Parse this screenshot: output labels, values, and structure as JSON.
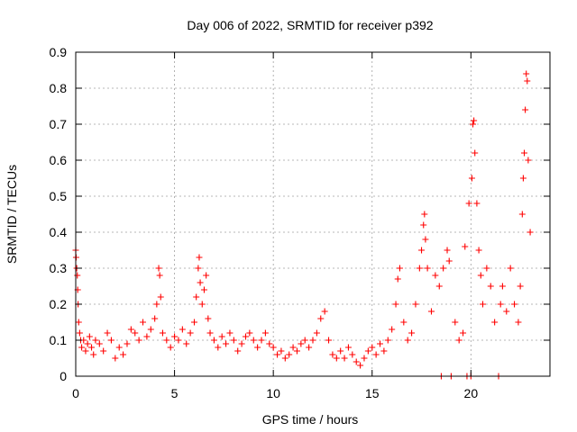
{
  "chart_data": {
    "type": "scatter",
    "title": "Day 006 of 2022, SRMTID for receiver p392",
    "xlabel": "GPS time / hours",
    "ylabel": "SRMTID / TECUs",
    "xlim": [
      0,
      24
    ],
    "ylim": [
      0,
      0.9
    ],
    "xticks": [
      0,
      5,
      10,
      15,
      20
    ],
    "xtick_labels": [
      "0",
      "5",
      "10",
      "15",
      "20"
    ],
    "yticks": [
      0,
      0.1,
      0.2,
      0.3,
      0.4,
      0.5,
      0.6,
      0.7,
      0.8,
      0.9
    ],
    "ytick_labels": [
      "0",
      "0.1",
      "0.2",
      "0.3",
      "0.4",
      "0.5",
      "0.6",
      "0.7",
      "0.8",
      "0.9"
    ],
    "grid": true,
    "marker": "+",
    "color": "#ff0000",
    "series": [
      {
        "name": "SRMTID",
        "points": [
          [
            0.0,
            0.35
          ],
          [
            0.02,
            0.33
          ],
          [
            0.05,
            0.3
          ],
          [
            0.08,
            0.28
          ],
          [
            0.1,
            0.24
          ],
          [
            0.12,
            0.2
          ],
          [
            0.15,
            0.15
          ],
          [
            0.2,
            0.12
          ],
          [
            0.25,
            0.1
          ],
          [
            0.3,
            0.08
          ],
          [
            0.4,
            0.1
          ],
          [
            0.5,
            0.07
          ],
          [
            0.6,
            0.09
          ],
          [
            0.7,
            0.11
          ],
          [
            0.8,
            0.08
          ],
          [
            0.9,
            0.06
          ],
          [
            1.0,
            0.1
          ],
          [
            1.2,
            0.09
          ],
          [
            1.4,
            0.07
          ],
          [
            1.6,
            0.12
          ],
          [
            1.8,
            0.1
          ],
          [
            2.0,
            0.05
          ],
          [
            2.2,
            0.08
          ],
          [
            2.4,
            0.06
          ],
          [
            2.6,
            0.09
          ],
          [
            2.8,
            0.13
          ],
          [
            3.0,
            0.12
          ],
          [
            3.2,
            0.1
          ],
          [
            3.4,
            0.15
          ],
          [
            3.6,
            0.11
          ],
          [
            3.8,
            0.13
          ],
          [
            4.0,
            0.16
          ],
          [
            4.1,
            0.2
          ],
          [
            4.2,
            0.3
          ],
          [
            4.25,
            0.28
          ],
          [
            4.3,
            0.22
          ],
          [
            4.4,
            0.12
          ],
          [
            4.6,
            0.1
          ],
          [
            4.8,
            0.08
          ],
          [
            5.0,
            0.11
          ],
          [
            5.2,
            0.1
          ],
          [
            5.4,
            0.13
          ],
          [
            5.6,
            0.09
          ],
          [
            5.8,
            0.12
          ],
          [
            6.0,
            0.15
          ],
          [
            6.1,
            0.22
          ],
          [
            6.2,
            0.3
          ],
          [
            6.25,
            0.33
          ],
          [
            6.3,
            0.26
          ],
          [
            6.4,
            0.2
          ],
          [
            6.5,
            0.24
          ],
          [
            6.6,
            0.28
          ],
          [
            6.7,
            0.16
          ],
          [
            6.8,
            0.12
          ],
          [
            7.0,
            0.1
          ],
          [
            7.2,
            0.08
          ],
          [
            7.4,
            0.11
          ],
          [
            7.6,
            0.09
          ],
          [
            7.8,
            0.12
          ],
          [
            8.0,
            0.1
          ],
          [
            8.2,
            0.07
          ],
          [
            8.4,
            0.09
          ],
          [
            8.6,
            0.11
          ],
          [
            8.8,
            0.12
          ],
          [
            9.0,
            0.1
          ],
          [
            9.2,
            0.08
          ],
          [
            9.4,
            0.1
          ],
          [
            9.6,
            0.12
          ],
          [
            9.8,
            0.09
          ],
          [
            10.0,
            0.08
          ],
          [
            10.2,
            0.06
          ],
          [
            10.4,
            0.07
          ],
          [
            10.6,
            0.05
          ],
          [
            10.8,
            0.06
          ],
          [
            11.0,
            0.08
          ],
          [
            11.2,
            0.07
          ],
          [
            11.4,
            0.09
          ],
          [
            11.6,
            0.1
          ],
          [
            11.8,
            0.08
          ],
          [
            12.0,
            0.1
          ],
          [
            12.2,
            0.12
          ],
          [
            12.4,
            0.16
          ],
          [
            12.6,
            0.18
          ],
          [
            12.8,
            0.1
          ],
          [
            13.0,
            0.06
          ],
          [
            13.2,
            0.05
          ],
          [
            13.4,
            0.07
          ],
          [
            13.6,
            0.05
          ],
          [
            13.8,
            0.08
          ],
          [
            14.0,
            0.06
          ],
          [
            14.2,
            0.04
          ],
          [
            14.4,
            0.03
          ],
          [
            14.6,
            0.05
          ],
          [
            14.8,
            0.07
          ],
          [
            15.0,
            0.08
          ],
          [
            15.2,
            0.06
          ],
          [
            15.4,
            0.09
          ],
          [
            15.6,
            0.07
          ],
          [
            15.8,
            0.1
          ],
          [
            16.0,
            0.13
          ],
          [
            16.2,
            0.2
          ],
          [
            16.3,
            0.27
          ],
          [
            16.4,
            0.3
          ],
          [
            16.6,
            0.15
          ],
          [
            16.8,
            0.1
          ],
          [
            17.0,
            0.12
          ],
          [
            17.2,
            0.2
          ],
          [
            17.4,
            0.3
          ],
          [
            17.5,
            0.35
          ],
          [
            17.6,
            0.42
          ],
          [
            17.65,
            0.45
          ],
          [
            17.7,
            0.38
          ],
          [
            17.8,
            0.3
          ],
          [
            18.0,
            0.18
          ],
          [
            18.2,
            0.28
          ],
          [
            18.4,
            0.25
          ],
          [
            18.5,
            0.0
          ],
          [
            18.6,
            0.3
          ],
          [
            18.8,
            0.35
          ],
          [
            18.9,
            0.32
          ],
          [
            19.0,
            0.0
          ],
          [
            19.2,
            0.15
          ],
          [
            19.4,
            0.1
          ],
          [
            19.6,
            0.12
          ],
          [
            19.7,
            0.36
          ],
          [
            19.8,
            0.0
          ],
          [
            19.9,
            0.48
          ],
          [
            20.0,
            0.0
          ],
          [
            20.05,
            0.55
          ],
          [
            20.1,
            0.7
          ],
          [
            20.15,
            0.71
          ],
          [
            20.2,
            0.62
          ],
          [
            20.3,
            0.48
          ],
          [
            20.4,
            0.35
          ],
          [
            20.5,
            0.28
          ],
          [
            20.6,
            0.2
          ],
          [
            20.8,
            0.3
          ],
          [
            21.0,
            0.25
          ],
          [
            21.2,
            0.15
          ],
          [
            21.4,
            0.0
          ],
          [
            21.5,
            0.2
          ],
          [
            21.6,
            0.25
          ],
          [
            21.8,
            0.18
          ],
          [
            22.0,
            0.3
          ],
          [
            22.2,
            0.2
          ],
          [
            22.4,
            0.15
          ],
          [
            22.5,
            0.25
          ],
          [
            22.6,
            0.45
          ],
          [
            22.65,
            0.55
          ],
          [
            22.7,
            0.62
          ],
          [
            22.75,
            0.74
          ],
          [
            22.8,
            0.84
          ],
          [
            22.85,
            0.82
          ],
          [
            22.9,
            0.6
          ],
          [
            23.0,
            0.4
          ]
        ]
      }
    ]
  }
}
